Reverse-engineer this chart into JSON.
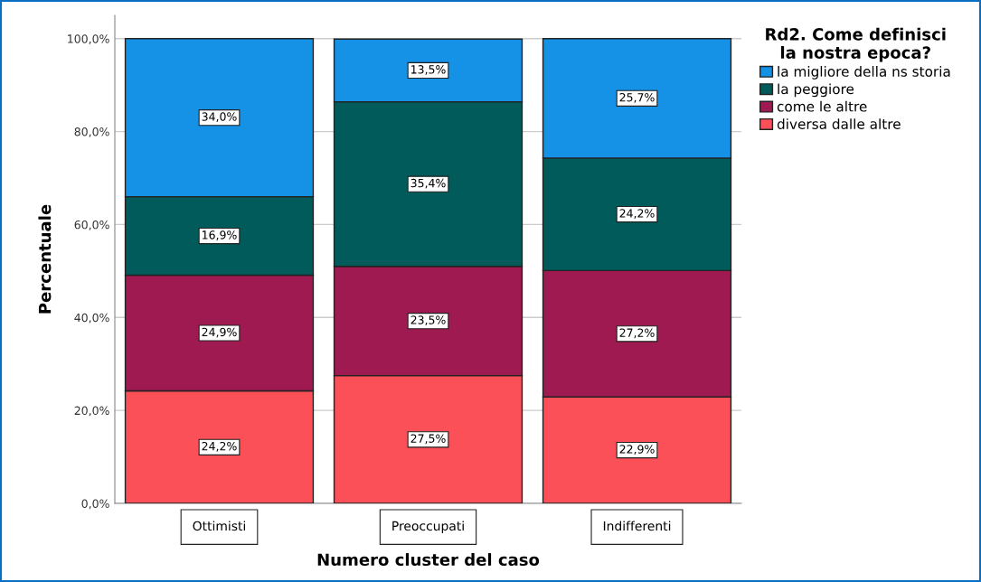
{
  "chart_data": {
    "type": "bar",
    "stacked": true,
    "xlabel": "Numero cluster del caso",
    "ylabel": "Percentuale",
    "legend_title": "Rd2. Come definisci\nla nostra epoca?",
    "categories": [
      "Ottimisti",
      "Preoccupati",
      "Indifferenti"
    ],
    "series": [
      {
        "name": "diversa dalle altre",
        "color": "#fb5058",
        "values": [
          24.2,
          27.5,
          22.9
        ],
        "value_labels": [
          "24,2%",
          "27,5%",
          "22,9%"
        ]
      },
      {
        "name": "come le altre",
        "color": "#9e1a50",
        "values": [
          24.9,
          23.5,
          27.2
        ],
        "value_labels": [
          "24,9%",
          "23,5%",
          "27,2%"
        ]
      },
      {
        "name": "la peggiore",
        "color": "#005b5a",
        "values": [
          16.9,
          35.4,
          24.2
        ],
        "value_labels": [
          "16,9%",
          "35,4%",
          "24,2%"
        ]
      },
      {
        "name": "la migliore della ns storia",
        "color": "#1591e6",
        "values": [
          34.0,
          13.5,
          25.7
        ],
        "value_labels": [
          "34,0%",
          "13,5%",
          "25,7%"
        ]
      }
    ],
    "ylim": [
      0,
      105
    ],
    "yticks": [
      {
        "value": 0,
        "label": "0,0%"
      },
      {
        "value": 20,
        "label": "20,0%"
      },
      {
        "value": 40,
        "label": "40,0%"
      },
      {
        "value": 60,
        "label": "60,0%"
      },
      {
        "value": 80,
        "label": "80,0%"
      },
      {
        "value": 100,
        "label": "100,0%"
      }
    ],
    "grid": "y",
    "legend": "top right"
  }
}
